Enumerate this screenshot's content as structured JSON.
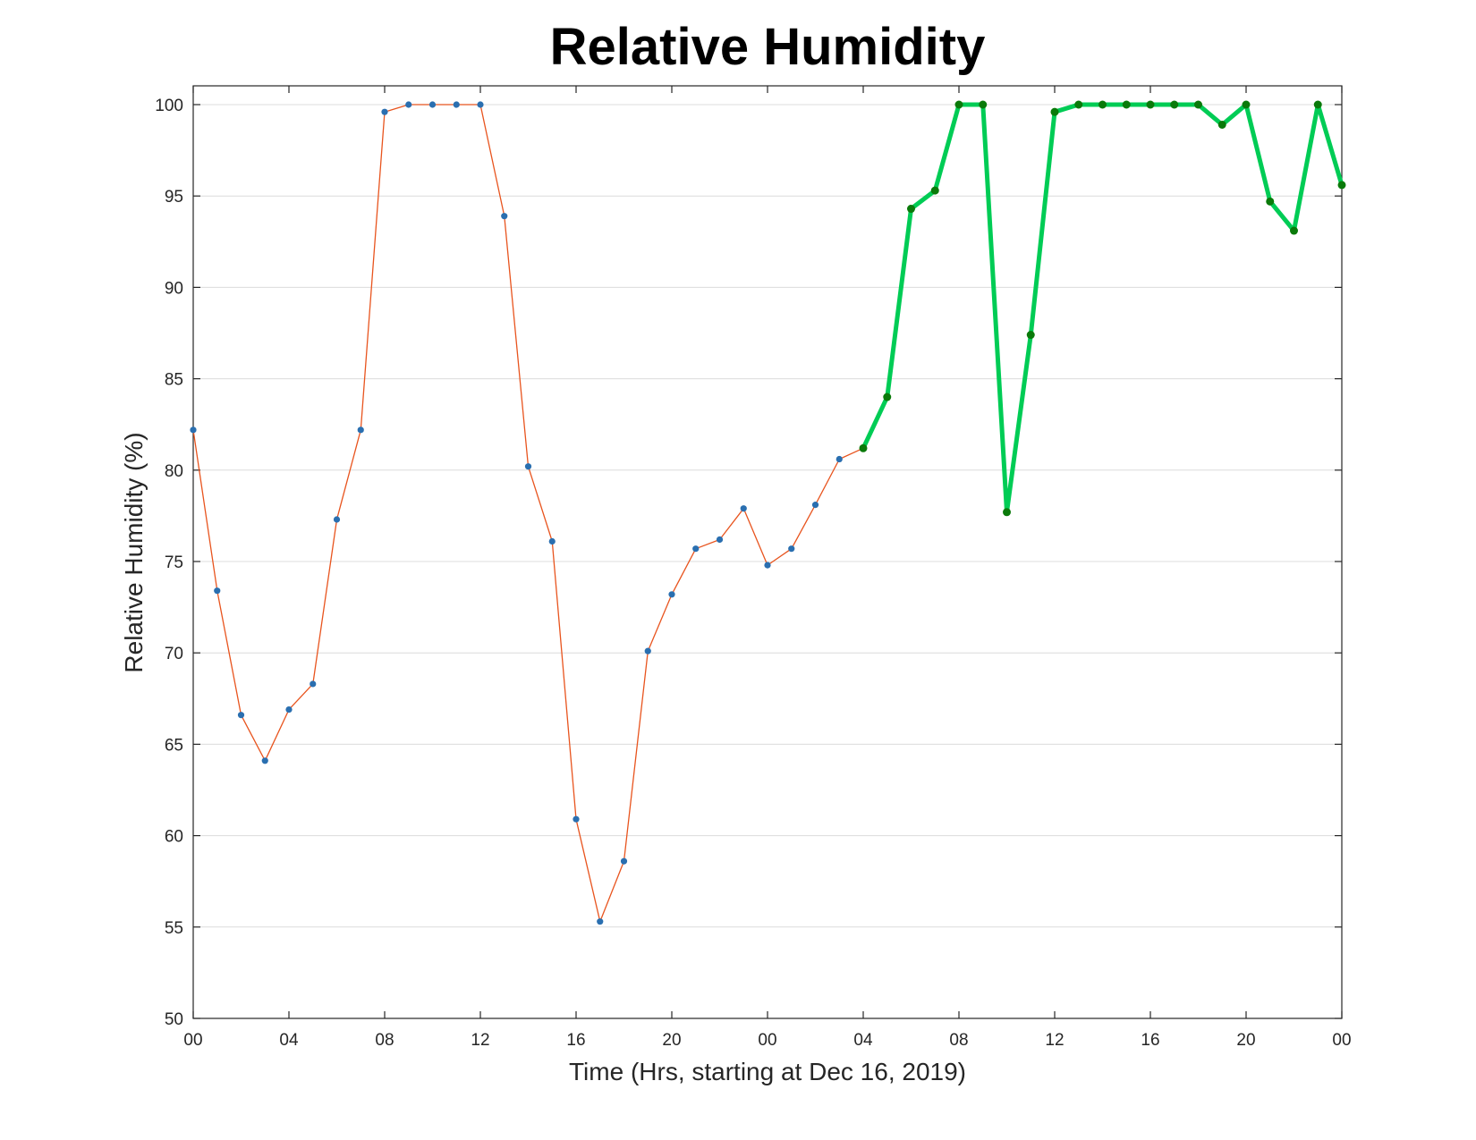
{
  "chart_data": {
    "type": "line",
    "title": "Relative Humidity",
    "xlabel": "Time (Hrs, starting at Dec 16, 2019)",
    "ylabel": "Relative Humidity (%)",
    "xlim": [
      0,
      48
    ],
    "ylim": [
      50,
      100
    ],
    "grid": true,
    "x_ticks": [
      {
        "x": 0,
        "label": "00"
      },
      {
        "x": 4,
        "label": "04"
      },
      {
        "x": 8,
        "label": "08"
      },
      {
        "x": 12,
        "label": "12"
      },
      {
        "x": 16,
        "label": "16"
      },
      {
        "x": 20,
        "label": "20"
      },
      {
        "x": 24,
        "label": "00"
      },
      {
        "x": 28,
        "label": "04"
      },
      {
        "x": 32,
        "label": "08"
      },
      {
        "x": 36,
        "label": "12"
      },
      {
        "x": 40,
        "label": "16"
      },
      {
        "x": 44,
        "label": "20"
      },
      {
        "x": 48,
        "label": "00"
      }
    ],
    "y_ticks": [
      50,
      55,
      60,
      65,
      70,
      75,
      80,
      85,
      90,
      95,
      100
    ],
    "series": [
      {
        "color": "#e8541e",
        "marker_color": "#2a6fb0",
        "line_width": "thin",
        "x": [
          0,
          1,
          2,
          3,
          4,
          5,
          6,
          7,
          8,
          9,
          10,
          11,
          12,
          13,
          14,
          15,
          16,
          17,
          18,
          19,
          20,
          21,
          22,
          23,
          24,
          25,
          26,
          27,
          28
        ],
        "y": [
          82.2,
          73.4,
          66.6,
          64.1,
          66.9,
          68.3,
          77.3,
          82.2,
          99.6,
          100,
          100,
          100,
          100,
          93.9,
          80.2,
          76.1,
          60.9,
          55.3,
          58.6,
          70.1,
          73.2,
          75.7,
          76.2,
          77.9,
          74.8,
          75.7,
          78.1,
          80.6,
          81.2
        ]
      },
      {
        "color": "#00cc55",
        "marker_color": "#0a7a0a",
        "line_width": "thick",
        "x": [
          28,
          29,
          30,
          31,
          32,
          33,
          34,
          35,
          36,
          37,
          38,
          39,
          40,
          41,
          42,
          43,
          44,
          45,
          46,
          47,
          48
        ],
        "y": [
          81.2,
          84.0,
          94.3,
          95.3,
          100,
          100,
          77.7,
          87.4,
          99.6,
          100,
          100,
          100,
          100,
          100,
          100,
          98.9,
          100,
          94.7,
          93.1,
          100,
          95.6
        ]
      }
    ]
  }
}
